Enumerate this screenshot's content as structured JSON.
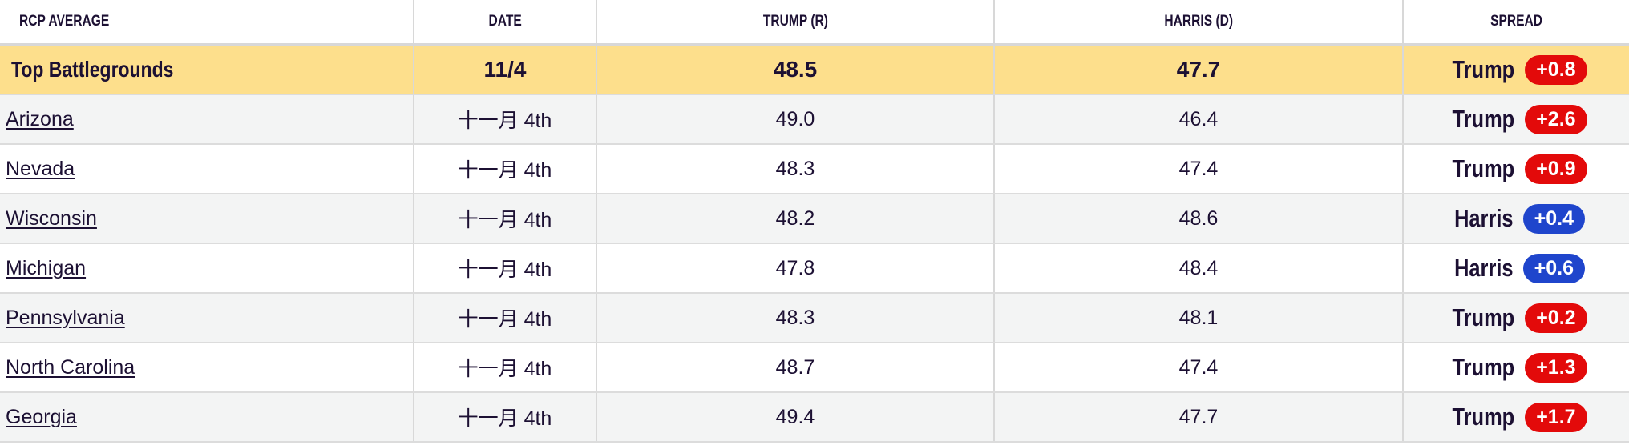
{
  "headers": {
    "name": "RCP AVERAGE",
    "date": "DATE",
    "trump": "TRUMP (R)",
    "harris": "HARRIS (D)",
    "spread": "SPREAD"
  },
  "colors": {
    "trump": "#e30a0a",
    "harris": "#1f45cc",
    "highlight": "#fddf8c"
  },
  "top": {
    "name": "Top Battlegrounds",
    "date": "11/4",
    "trump": "48.5",
    "harris": "47.7",
    "leader": "Trump",
    "spread": "+0.8",
    "party": "trump"
  },
  "rows": [
    {
      "name": "Arizona",
      "date": "十一月 4th",
      "trump": "49.0",
      "harris": "46.4",
      "leader": "Trump",
      "spread": "+2.6",
      "party": "trump"
    },
    {
      "name": "Nevada",
      "date": "十一月 4th",
      "trump": "48.3",
      "harris": "47.4",
      "leader": "Trump",
      "spread": "+0.9",
      "party": "trump"
    },
    {
      "name": "Wisconsin",
      "date": "十一月 4th",
      "trump": "48.2",
      "harris": "48.6",
      "leader": "Harris",
      "spread": "+0.4",
      "party": "harris"
    },
    {
      "name": "Michigan",
      "date": "十一月 4th",
      "trump": "47.8",
      "harris": "48.4",
      "leader": "Harris",
      "spread": "+0.6",
      "party": "harris"
    },
    {
      "name": "Pennsylvania",
      "date": "十一月 4th",
      "trump": "48.3",
      "harris": "48.1",
      "leader": "Trump",
      "spread": "+0.2",
      "party": "trump"
    },
    {
      "name": "North Carolina",
      "date": "十一月 4th",
      "trump": "48.7",
      "harris": "47.4",
      "leader": "Trump",
      "spread": "+1.3",
      "party": "trump"
    },
    {
      "name": "Georgia",
      "date": "十一月 4th",
      "trump": "49.4",
      "harris": "47.7",
      "leader": "Trump",
      "spread": "+1.7",
      "party": "trump"
    }
  ]
}
